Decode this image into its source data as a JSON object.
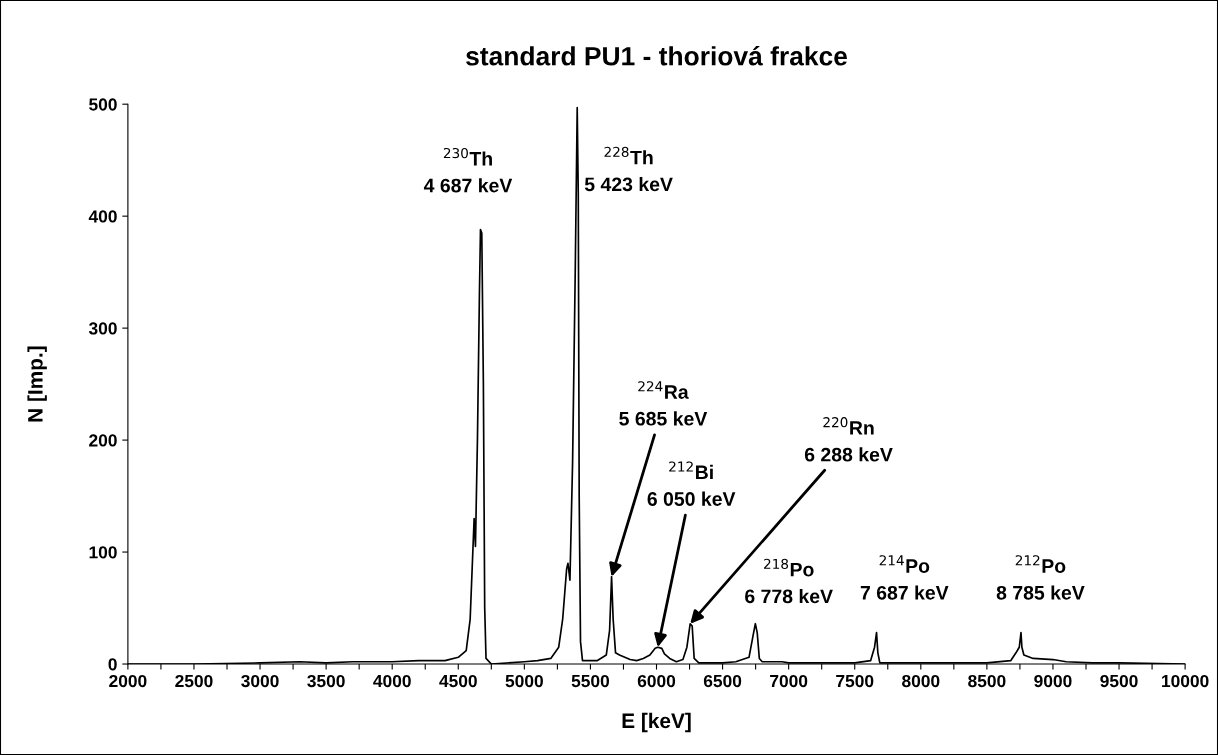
{
  "chart_data": {
    "type": "line",
    "title": "standard PU1 - thoriová frakce",
    "xlabel": "E [keV]",
    "ylabel": "N [Imp.]",
    "x": [
      2000,
      2500,
      3000,
      3300,
      3500,
      3700,
      4000,
      4200,
      4400,
      4500,
      4560,
      4590,
      4610,
      4620,
      4630,
      4645,
      4660,
      4668,
      4678,
      4690,
      4700,
      4710,
      4750,
      5000,
      5100,
      5200,
      5260,
      5290,
      5320,
      5330,
      5345,
      5365,
      5385,
      5400,
      5408,
      5415,
      5425,
      5440,
      5550,
      5620,
      5645,
      5660,
      5672,
      5690,
      5720,
      5760,
      5800,
      5850,
      5900,
      5950,
      5990,
      6010,
      6040,
      6060,
      6100,
      6150,
      6200,
      6230,
      6255,
      6270,
      6285,
      6320,
      6500,
      6600,
      6700,
      6730,
      6748,
      6762,
      6778,
      6800,
      6950,
      7000,
      7500,
      7620,
      7650,
      7665,
      7675,
      7690,
      8000,
      8500,
      8680,
      8720,
      8745,
      8758,
      8765,
      8780,
      8850,
      9000,
      9100,
      9300,
      9500,
      10000
    ],
    "series": [
      {
        "color": "#000000",
        "values": [
          0,
          0,
          1,
          2,
          1,
          2,
          2,
          3,
          3,
          6,
          12,
          40,
          100,
          130,
          105,
          200,
          330,
          388,
          385,
          250,
          50,
          5,
          0,
          2,
          3,
          5,
          15,
          40,
          85,
          90,
          75,
          180,
          350,
          497,
          420,
          150,
          20,
          3,
          3,
          8,
          30,
          78,
          40,
          10,
          8,
          6,
          4,
          3,
          5,
          8,
          14,
          15,
          14,
          9,
          5,
          2,
          4,
          15,
          36,
          34,
          5,
          1,
          1,
          2,
          6,
          25,
          36,
          28,
          5,
          2,
          2,
          1,
          1,
          3,
          15,
          28,
          10,
          1,
          1,
          1,
          3,
          10,
          15,
          28,
          15,
          8,
          5,
          4,
          2,
          1,
          1,
          0
        ]
      }
    ],
    "xlim": [
      2000,
      10000
    ],
    "xticks": [
      2000,
      {
        "value": 2250,
        "label": null
      },
      2500,
      {
        "value": 2750,
        "label": null
      },
      3000,
      {
        "value": 3250,
        "label": null
      },
      3500,
      {
        "value": 3750,
        "label": null
      },
      4000,
      {
        "value": 4250,
        "label": null
      },
      4500,
      {
        "value": 4750,
        "label": null
      },
      5000,
      {
        "value": 5250,
        "label": null
      },
      5500,
      {
        "value": 5750,
        "label": null
      },
      6000,
      {
        "value": 6250,
        "label": null
      },
      6500,
      {
        "value": 6750,
        "label": null
      },
      7000,
      {
        "value": 7250,
        "label": null
      },
      7500,
      {
        "value": 7750,
        "label": null
      },
      8000,
      {
        "value": 8250,
        "label": null
      },
      8500,
      {
        "value": 8750,
        "label": null
      },
      9000,
      {
        "value": 9250,
        "label": null
      },
      9500,
      {
        "value": 9750,
        "label": null
      },
      10000
    ],
    "ylim": [
      0,
      500
    ],
    "yticks": [
      0,
      100,
      200,
      300,
      400,
      500
    ],
    "grid": false,
    "legend": false,
    "marker": "none",
    "line_style": "solid",
    "annotations": [
      {
        "text": "$^{230}$Th\n4 687 keV",
        "x": 4668,
        "y": 388
      },
      {
        "text": "$^{228}$Th\n5 423 keV",
        "x": 5400,
        "y": 497
      },
      {
        "text": "$^{224}$Ra\n5 685 keV",
        "x": 5660,
        "y": 78
      },
      {
        "text": "$^{212}$Bi\n6 050 keV",
        "x": 6010,
        "y": 15
      },
      {
        "text": "$^{220}$Rn\n6 288 keV",
        "x": 6255,
        "y": 36
      },
      {
        "text": "$^{218}$Po\n6 778 keV",
        "x": 6748,
        "y": 36
      },
      {
        "text": "$^{214}$Po\n7 687 keV",
        "x": 7665,
        "y": 28
      },
      {
        "text": "$^{212}$Po\n8 785 keV",
        "x": 8758,
        "y": 28
      }
    ]
  }
}
